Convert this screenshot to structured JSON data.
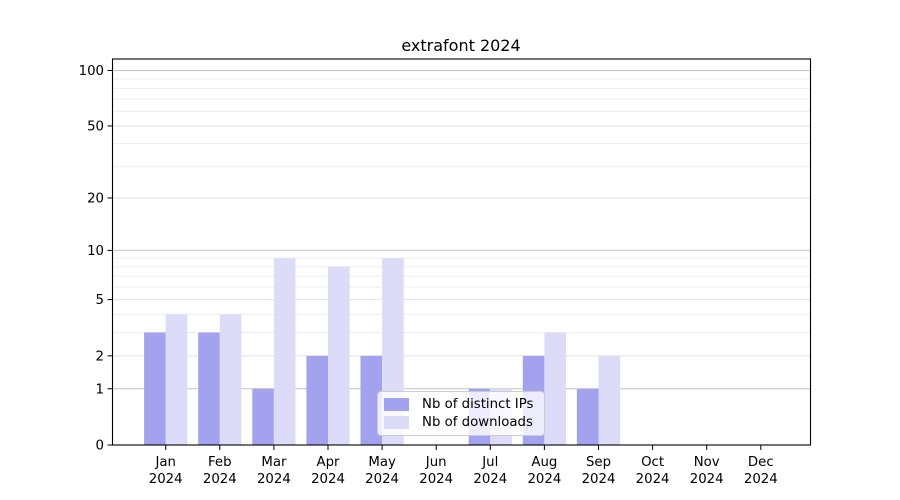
{
  "window": {
    "background": "#ffffff"
  },
  "chart_data": {
    "type": "bar",
    "title": "extrafont 2024",
    "y_scale": "log1p",
    "y_axis": {
      "ticks": [
        0,
        1,
        2,
        5,
        10,
        20,
        50,
        100
      ],
      "strong_gridlines": [
        1,
        10,
        100
      ],
      "minor_gridlines": [
        3,
        4,
        6,
        7,
        8,
        9,
        30,
        40,
        60,
        70,
        80,
        90
      ],
      "range": [
        0,
        100
      ],
      "grid": true
    },
    "x_axis": {
      "categories": [
        "Jan",
        "Feb",
        "Mar",
        "Apr",
        "May",
        "Jun",
        "Jul",
        "Aug",
        "Sep",
        "Oct",
        "Nov",
        "Dec"
      ],
      "year": "2024"
    },
    "series": [
      {
        "name": "Nb of distinct IPs",
        "color": "#a2a2ef",
        "values": [
          3,
          3,
          1,
          2,
          2,
          0,
          1,
          2,
          1,
          0,
          0,
          0
        ]
      },
      {
        "name": "Nb of downloads",
        "color": "#dcdcf8",
        "values": [
          4,
          4,
          9,
          8,
          9,
          0,
          1,
          3,
          2,
          0,
          0,
          0
        ]
      }
    ],
    "legend": {
      "position": "bottom-center",
      "items": [
        "Nb of distinct IPs",
        "Nb of downloads"
      ]
    },
    "colors": {
      "grid_strong": "#c3c3c3",
      "grid_major": "#e1e1e1",
      "grid_minor": "#ededed",
      "axis": "#000000",
      "text": "#000000"
    }
  }
}
